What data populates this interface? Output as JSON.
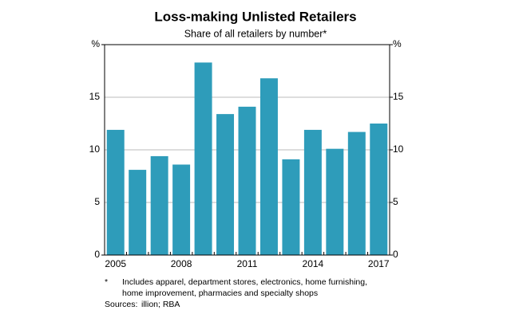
{
  "chart_data": {
    "type": "bar",
    "title": "Loss-making Unlisted Retailers",
    "subtitle": "Share of all retailers by number*",
    "categories": [
      "2005",
      null,
      null,
      "2008",
      null,
      null,
      "2011",
      null,
      null,
      "2014",
      null,
      null,
      "2017"
    ],
    "values": [
      11.9,
      8.1,
      9.4,
      8.6,
      18.3,
      13.4,
      14.1,
      16.8,
      9.1,
      11.9,
      10.1,
      11.7,
      12.5
    ],
    "color": "#2e9cba",
    "ylim": [
      0,
      20
    ],
    "yticks": [
      0,
      5,
      10,
      15,
      {
        "value": 20,
        "label": "%"
      }
    ],
    "y2lim": [
      0,
      20
    ],
    "y2ticks": [
      0,
      5,
      10,
      15,
      {
        "value": 20,
        "label": "%"
      }
    ],
    "grid": true,
    "footnote": {
      "marker": "*",
      "lines": [
        "Includes apparel, department stores, electronics, home furnishing,",
        "home improvement, pharmacies and specialty shops"
      ]
    },
    "sources": {
      "label": "Sources:",
      "text": "illion; RBA"
    }
  }
}
